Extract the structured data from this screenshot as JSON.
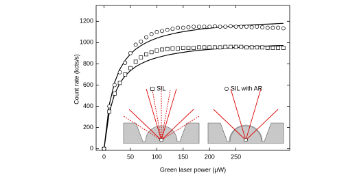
{
  "chart_data": {
    "type": "scatter",
    "x_label": "Green laser power (μW)",
    "y_label": "Count rate (kcts/s)",
    "x": [
      0,
      10,
      20,
      30,
      40,
      50,
      60,
      70,
      80,
      90,
      100,
      110,
      120,
      130,
      140,
      150,
      160,
      170,
      180,
      190,
      200,
      210,
      220,
      230,
      240,
      250,
      260,
      270,
      280,
      290,
      300,
      310,
      320,
      330,
      340
    ],
    "series": [
      {
        "name": "SIL",
        "marker": "square",
        "color": "#000000",
        "values": [
          0,
          350,
          520,
          620,
          700,
          760,
          820,
          860,
          890,
          910,
          925,
          935,
          940,
          945,
          945,
          950,
          950,
          950,
          955,
          955,
          955,
          955,
          955,
          960,
          960,
          960,
          960,
          955,
          955,
          955,
          955,
          950,
          950,
          950,
          950
        ]
      },
      {
        "name": "SIL with AR",
        "marker": "circle",
        "color": "#000000",
        "values": [
          0,
          400,
          600,
          720,
          810,
          900,
          980,
          1010,
          1050,
          1080,
          1100,
          1110,
          1120,
          1130,
          1140,
          1140,
          1145,
          1150,
          1150,
          1150,
          1150,
          1155,
          1150,
          1150,
          1155,
          1150,
          1150,
          1150,
          1145,
          1150,
          1145,
          1140,
          1140,
          1140,
          1135
        ]
      },
      {
        "marker": "none",
        "color": "#000000",
        "values": [
          0,
          343,
          515,
          618,
          687,
          736,
          773,
          801,
          824,
          843,
          858,
          871,
          883,
          892,
          901,
          908,
          916,
          922,
          927,
          932,
          936,
          941,
          944,
          948,
          951,
          954,
          957,
          959,
          962,
          964,
          966,
          968,
          970,
          972,
          973
        ]
      },
      {
        "marker": "none",
        "color": "#000000",
        "values": [
          0,
          417,
          625,
          750,
          833,
          893,
          938,
          972,
          1000,
          1023,
          1042,
          1058,
          1071,
          1083,
          1094,
          1103,
          1111,
          1118,
          1125,
          1132,
          1136,
          1141,
          1146,
          1150,
          1154,
          1157,
          1161,
          1164,
          1167,
          1169,
          1172,
          1174,
          1176,
          1179,
          1181
        ]
      }
    ],
    "xlim": [
      -15,
      352
    ],
    "ylim": [
      -15,
      1350
    ],
    "xticks": [
      0,
      50,
      100,
      150,
      200,
      250
    ],
    "yticks": [
      0,
      200,
      400,
      600,
      800,
      1000,
      1200
    ]
  }
}
